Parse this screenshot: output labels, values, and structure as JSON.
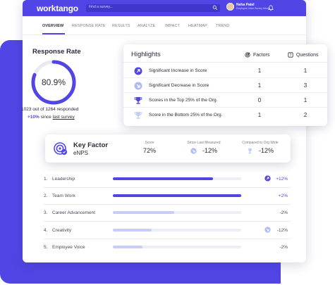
{
  "brand": {
    "name": "worktango",
    "accent": "#5145e6"
  },
  "search": {
    "placeholder": "Find a survey..."
  },
  "user": {
    "name": "Neha Patel",
    "role": "Employee Voice Survey Admin"
  },
  "tabs": [
    {
      "label": "OVERVIEW",
      "active": true
    },
    {
      "label": "RESPONSE RATE",
      "active": false
    },
    {
      "label": "RESULTS",
      "active": false
    },
    {
      "label": "ANALYZE",
      "active": false
    },
    {
      "label": "IMPACT",
      "active": false
    },
    {
      "label": "HEATMAP",
      "active": false
    },
    {
      "label": "TREND",
      "active": false
    }
  ],
  "response_rate": {
    "title": "Response Rate",
    "percent_label": "80.9%",
    "percent_value": 80.9,
    "count_text": "1023 out of 1264 responded",
    "delta": "+10%",
    "since_text": "since",
    "since_link": "last survey"
  },
  "highlights": {
    "title": "Highlights",
    "col_factors": "Factors",
    "col_questions": "Questions",
    "rows": [
      {
        "icon": "increase-arrow-icon",
        "label": "Significant Increase in Score",
        "factors": "1",
        "questions": "1"
      },
      {
        "icon": "decrease-arrow-icon",
        "label": "Significant Decrease in Score",
        "factors": "1",
        "questions": "3"
      },
      {
        "icon": "trophy-icon",
        "label": "Scores in the Top 25% of the Org.",
        "factors": "0",
        "questions": "1"
      },
      {
        "icon": "trophy-outline-icon",
        "label": "Score in the Bottom 25% of the Org.",
        "factors": "1",
        "questions": "2"
      }
    ]
  },
  "key_factor": {
    "title": "Key Factor",
    "name": "eNPS",
    "score_label": "Score",
    "score_value": "72%",
    "since_label": "Since Last Measured",
    "since_value": "-12%",
    "org_label": "Compared to Org Wide",
    "org_value": "-12%"
  },
  "factors": [
    {
      "num": "1.",
      "name": "Leadership",
      "fill": 0.78,
      "strong": true,
      "delta": "+12%",
      "trend_icon": "increase-arrow-icon"
    },
    {
      "num": "2.",
      "name": "Team Work",
      "fill": 1.0,
      "strong": true,
      "delta": "+2%",
      "trend_icon": ""
    },
    {
      "num": "3.",
      "name": "Career Advancement",
      "fill": 0.48,
      "strong": false,
      "delta": "-2%",
      "trend_icon": ""
    },
    {
      "num": "4.",
      "name": "Creativity",
      "fill": 0.3,
      "strong": false,
      "delta": "-12%",
      "trend_icon": "decrease-arrow-icon"
    },
    {
      "num": "5.",
      "name": "Employee Voice",
      "fill": 0.23,
      "strong": false,
      "delta": "-2%",
      "trend_icon": ""
    }
  ],
  "colors": {
    "bar_strong": "#5145e6",
    "bar_light": "#c7cdf6",
    "track": "#eceef5",
    "positive": "#5145e6",
    "negative": "#4a4a5a"
  }
}
